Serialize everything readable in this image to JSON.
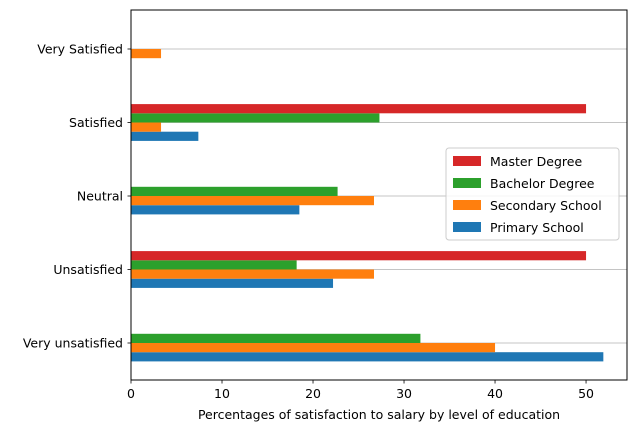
{
  "chart_data": {
    "type": "bar",
    "orientation": "horizontal",
    "categories": [
      "Very unsatisfied",
      "Unsatisfied",
      "Neutral",
      "Satisfied",
      "Very Satisfied"
    ],
    "series": [
      {
        "name": "Primary School",
        "color": "#1f77b4",
        "values": [
          51.9,
          22.2,
          18.5,
          7.4,
          0
        ]
      },
      {
        "name": "Secondary School",
        "color": "#ff7f0e",
        "values": [
          40.0,
          26.7,
          26.7,
          3.3,
          3.3
        ]
      },
      {
        "name": "Bachelor Degree",
        "color": "#2ca02c",
        "values": [
          31.8,
          18.2,
          22.7,
          27.3,
          0
        ]
      },
      {
        "name": "Master Degree",
        "color": "#d62728",
        "values": [
          0,
          50.0,
          0,
          50.0,
          0
        ]
      }
    ],
    "legend_order": [
      "Master Degree",
      "Bachelor Degree",
      "Secondary School",
      "Primary School"
    ],
    "xlabel": "Percentages of satisfaction to salary by level of education",
    "ylabel": "",
    "xlim": [
      0,
      54.5
    ],
    "xticks": [
      0,
      10,
      20,
      30,
      40,
      50
    ],
    "grid": "horizontal lines at categories",
    "legend_position": "center-right"
  }
}
